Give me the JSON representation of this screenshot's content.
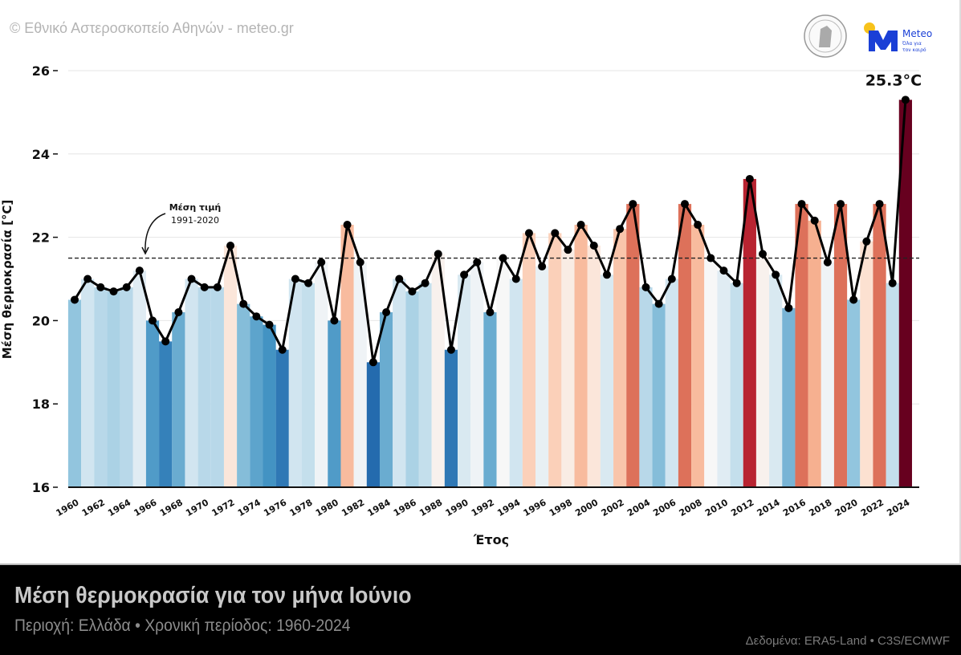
{
  "header": {
    "copyright": "© Εθνικό Αστεροσκοπείο Αθηνών - meteo.gr",
    "logo_meteo_name": "Meteo",
    "logo_meteo_tagline_1": "Όλα για",
    "logo_meteo_tagline_2": "τον καιρό",
    "logo_colors": {
      "meteo_blue": "#1a3fd6",
      "sun_yellow": "#f7c21b"
    }
  },
  "footer": {
    "title": "Μέση θερμοκρασία για τον μήνα Ιούνιο",
    "subtitle": "Περιοχή: Ελλάδα • Χρονική περίοδος: 1960-2024",
    "source": "Δεδομένα: ERA5-Land • C3S/ECMWF"
  },
  "chart_data": {
    "type": "bar",
    "overlay": "line-with-markers",
    "xlabel": "Έτος",
    "ylabel": "Μέση θερμοκρασία [°C]",
    "ylim": [
      16,
      26
    ],
    "yticks": [
      16,
      18,
      20,
      22,
      24,
      26
    ],
    "xtick_labels": [
      "1960",
      "1962",
      "1964",
      "1966",
      "1968",
      "1970",
      "1972",
      "1974",
      "1976",
      "1978",
      "1980",
      "1982",
      "1984",
      "1986",
      "1988",
      "1990",
      "1992",
      "1994",
      "1996",
      "1998",
      "2000",
      "2002",
      "2004",
      "2006",
      "2008",
      "2010",
      "2012",
      "2014",
      "2016",
      "2018",
      "2020",
      "2022",
      "2024"
    ],
    "grid": "horizontal",
    "x": [
      1960,
      1961,
      1962,
      1963,
      1964,
      1965,
      1966,
      1967,
      1968,
      1969,
      1970,
      1971,
      1972,
      1973,
      1974,
      1975,
      1976,
      1977,
      1978,
      1979,
      1980,
      1981,
      1982,
      1983,
      1984,
      1985,
      1986,
      1987,
      1988,
      1989,
      1990,
      1991,
      1992,
      1993,
      1994,
      1995,
      1996,
      1997,
      1998,
      1999,
      2000,
      2001,
      2002,
      2003,
      2004,
      2005,
      2006,
      2007,
      2008,
      2009,
      2010,
      2011,
      2012,
      2013,
      2014,
      2015,
      2016,
      2017,
      2018,
      2019,
      2020,
      2021,
      2022,
      2023,
      2024
    ],
    "values": [
      20.5,
      21.0,
      20.8,
      20.7,
      20.8,
      21.2,
      20.0,
      19.5,
      20.2,
      21.0,
      20.8,
      20.8,
      21.8,
      20.4,
      20.1,
      19.9,
      19.3,
      21.0,
      20.9,
      21.4,
      20.0,
      22.3,
      21.4,
      19.0,
      20.2,
      21.0,
      20.7,
      20.9,
      21.6,
      19.3,
      21.1,
      21.4,
      20.2,
      21.5,
      21.0,
      22.1,
      21.3,
      22.1,
      21.7,
      22.3,
      21.8,
      21.1,
      22.2,
      22.8,
      20.8,
      20.4,
      21.0,
      22.8,
      22.3,
      21.5,
      21.2,
      20.9,
      23.4,
      21.6,
      21.1,
      20.3,
      22.8,
      22.4,
      21.4,
      22.8,
      20.5,
      21.9,
      22.8,
      20.9,
      25.3
    ],
    "reference_line": {
      "value": 21.5,
      "label_1": "Μέση τιμή",
      "label_2": "1991-2020",
      "style": "dashed"
    },
    "annotation": {
      "year": 2024,
      "text": "25.3°C"
    },
    "color_scale": {
      "cold": "#2166ac",
      "neutral": "#f7f7f7",
      "warm": "#b2182b",
      "extreme": "#67001f"
    }
  }
}
